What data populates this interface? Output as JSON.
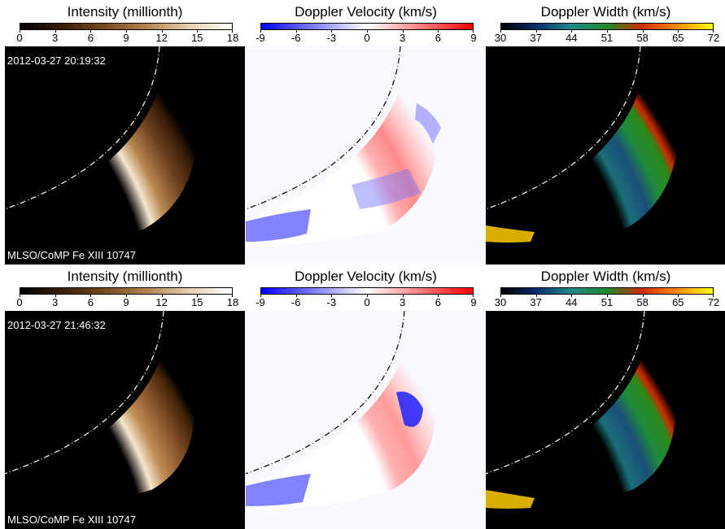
{
  "rows": [
    {
      "timestamp": "2012-03-27 20:19:32",
      "instrument": "MLSO/CoMP Fe XIII 10747",
      "panels": [
        {
          "title": "Intensity (millionth)",
          "ticks": [
            "0",
            "3",
            "6",
            "9",
            "12",
            "15",
            "18"
          ]
        },
        {
          "title": "Doppler Velocity (km/s)",
          "ticks": [
            "-9",
            "-6",
            "-3",
            "0",
            "3",
            "6",
            "9"
          ]
        },
        {
          "title": "Doppler Width (km/s)",
          "ticks": [
            "30",
            "37",
            "44",
            "51",
            "58",
            "65",
            "72"
          ]
        }
      ]
    },
    {
      "timestamp": "2012-03-27 21:46:32",
      "instrument": "MLSO/CoMP Fe XIII 10747",
      "panels": [
        {
          "title": "Intensity (millionth)",
          "ticks": [
            "0",
            "3",
            "6",
            "9",
            "12",
            "15",
            "18"
          ]
        },
        {
          "title": "Doppler Velocity (km/s)",
          "ticks": [
            "-9",
            "-6",
            "-3",
            "0",
            "3",
            "6",
            "9"
          ]
        },
        {
          "title": "Doppler Width (km/s)",
          "ticks": [
            "30",
            "37",
            "44",
            "51",
            "58",
            "65",
            "72"
          ]
        }
      ]
    }
  ],
  "colormaps": {
    "intensity": [
      "#000000",
      "#3a1e08",
      "#7a4a1e",
      "#b58450",
      "#e8cfae",
      "#ffffff"
    ],
    "velocity": [
      "#0000ff",
      "#8080ff",
      "#ffffff",
      "#ff8080",
      "#ff0000"
    ],
    "width": [
      "#000000",
      "#0a2a6a",
      "#1f8a8a",
      "#1f8a2a",
      "#cc2a00",
      "#ff8800",
      "#ffff00"
    ]
  }
}
